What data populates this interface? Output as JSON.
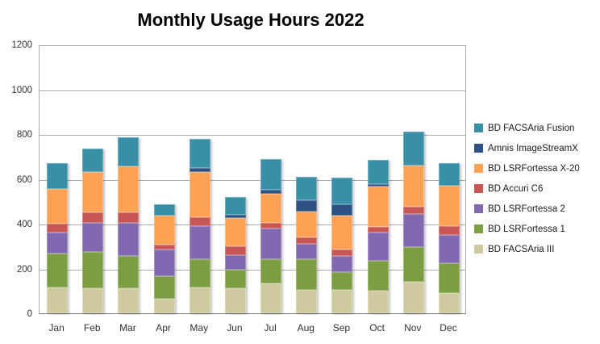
{
  "title": "Monthly Usage Hours 2022",
  "chart_data": {
    "type": "bar",
    "stacked": true,
    "title": "Monthly Usage Hours 2022",
    "xlabel": "",
    "ylabel": "",
    "ylim": [
      0,
      1200
    ],
    "yticks": [
      0,
      200,
      400,
      600,
      800,
      1000,
      1200
    ],
    "grid": true,
    "legend_position": "right",
    "categories": [
      "Jan",
      "Feb",
      "Mar",
      "Apr",
      "May",
      "Jun",
      "Jul",
      "Aug",
      "Sep",
      "Oct",
      "Nov",
      "Dec"
    ],
    "series_bottom_to_top": [
      {
        "name": "BD FACSAria III",
        "color": "#cfc9a0",
        "values": [
          115,
          110,
          110,
          65,
          115,
          110,
          135,
          105,
          105,
          100,
          140,
          90
        ]
      },
      {
        "name": "BD LSRFortessa 1",
        "color": "#7a9e41",
        "values": [
          150,
          165,
          145,
          100,
          125,
          85,
          105,
          135,
          80,
          135,
          155,
          135
        ]
      },
      {
        "name": "BD LSRFortessa 2",
        "color": "#8268ae",
        "values": [
          95,
          130,
          150,
          120,
          150,
          65,
          140,
          70,
          70,
          125,
          150,
          125
        ]
      },
      {
        "name": "BD Accuri C6",
        "color": "#c85654",
        "values": [
          40,
          45,
          45,
          20,
          40,
          40,
          25,
          30,
          30,
          25,
          30,
          40
        ]
      },
      {
        "name": "BD LSRFortessa X-20",
        "color": "#fda254",
        "values": [
          155,
          180,
          205,
          130,
          200,
          125,
          130,
          115,
          150,
          180,
          185,
          180
        ]
      },
      {
        "name": "Amnis ImageStreamX",
        "color": "#2b5283",
        "values": [
          0,
          0,
          0,
          0,
          20,
          15,
          15,
          50,
          50,
          10,
          0,
          0
        ]
      },
      {
        "name": "BD FACSAria Fusion",
        "color": "#398fa6",
        "values": [
          115,
          105,
          130,
          50,
          130,
          80,
          140,
          105,
          120,
          110,
          150,
          100
        ]
      }
    ],
    "legend_top_to_bottom": [
      "BD FACSAria Fusion",
      "Amnis ImageStreamX",
      "BD LSRFortessa X-20",
      "BD Accuri C6",
      "BD LSRFortessa 2",
      "BD LSRFortessa 1",
      "BD FACSAria III"
    ],
    "totals": [
      670,
      735,
      785,
      485,
      780,
      520,
      690,
      610,
      605,
      685,
      810,
      670
    ]
  },
  "colors": {
    "gridline": "#ababab",
    "axis_line": "#737373",
    "tick_text": "#303030",
    "title_text": "#000000",
    "background": "#ffffff"
  }
}
